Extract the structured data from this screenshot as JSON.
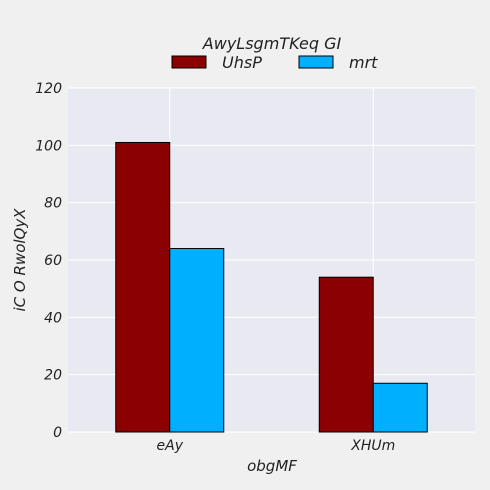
{
  "chart_data": {
    "type": "bar",
    "categories": [
      "eAy",
      "XHUm"
    ],
    "series": [
      {
        "name": "UhsP",
        "values": [
          101,
          54
        ],
        "color": "#8b0000"
      },
      {
        "name": "mrt",
        "values": [
          64,
          17
        ],
        "color": "#00b0ff"
      }
    ],
    "legend_title": "AwyLsgmTKeq GI",
    "legend_position": "top-center",
    "xlabel": "obgMF",
    "ylabel": "iC O  RwolQyX",
    "ylim": [
      0,
      120
    ],
    "yticks": [
      0,
      20,
      40,
      60,
      80,
      100,
      120
    ],
    "grid": true,
    "plot_background": "#e9e9f2",
    "grid_color": "#ffffff",
    "edge_color": "#000000"
  }
}
